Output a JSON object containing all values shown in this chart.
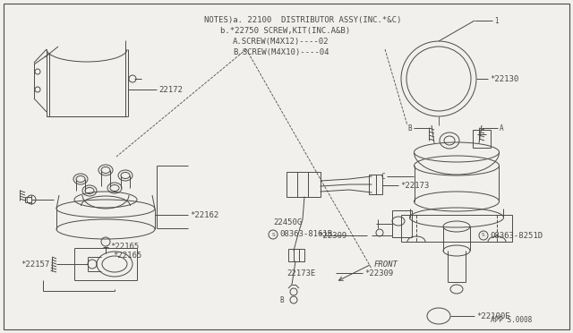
{
  "bg_color": "#f2f0ec",
  "line_color": "#4a4a4a",
  "title_lines": [
    "NOTES)a. 22100  DISTRIBUTOR ASSY(INC.*&C)",
    "b.*22750 SCREW,KIT(INC.A&B)",
    "A.SCREW(M4X12)----02",
    "B.SCREW(M4X10)----04"
  ],
  "font_size_notes": 6.5,
  "font_size_labels": 6.5,
  "font_size_small": 5.5
}
